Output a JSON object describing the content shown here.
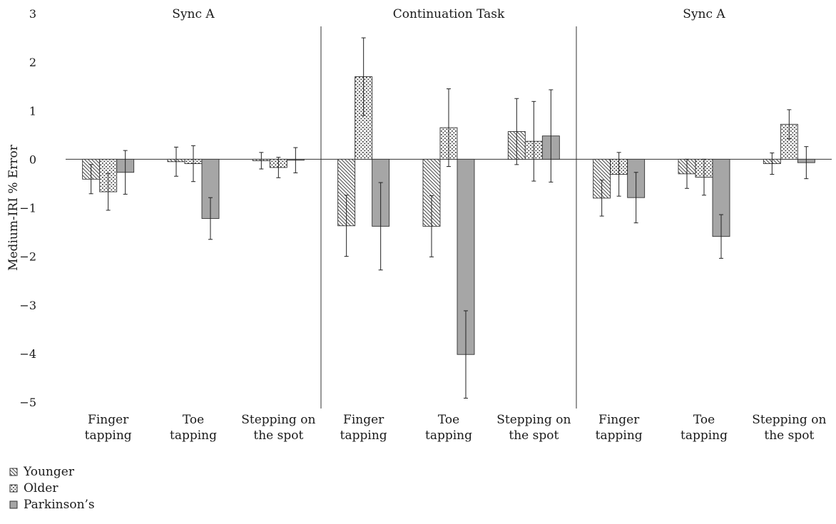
{
  "chart_data": {
    "type": "bar",
    "ylabel": "Medium-IRI % Error",
    "ylim": [
      -5,
      3
    ],
    "yticks": [
      3,
      2,
      1,
      0,
      -1,
      -2,
      -3,
      -4,
      -5
    ],
    "ytick_labels": [
      "3",
      "2",
      "1",
      "0",
      "−1",
      "−2",
      "−3",
      "−4",
      "−5"
    ],
    "legend": {
      "position": "bottom-left",
      "entries": [
        "Younger",
        "Older",
        "Parkinson’s"
      ]
    },
    "series_colors": {
      "Younger": "#ffffff",
      "Older": "#ffffff",
      "Parkinson’s": "#a6a6a6"
    },
    "series_patterns": {
      "Younger": "diagonal-hatch",
      "Older": "dots",
      "Parkinson’s": "solid"
    },
    "panels": [
      {
        "title": "Sync A",
        "categories": [
          {
            "lines": [
              "Finger",
              "tapping"
            ]
          },
          {
            "lines": [
              "Toe",
              "tapping"
            ]
          },
          {
            "lines": [
              "Stepping on",
              "the spot"
            ]
          }
        ],
        "series": [
          {
            "name": "Younger",
            "values": [
              -0.41,
              -0.05,
              -0.03
            ],
            "error": [
              0.3,
              0.3,
              0.17
            ]
          },
          {
            "name": "Older",
            "values": [
              -0.67,
              -0.09,
              -0.17
            ],
            "error": [
              0.38,
              0.37,
              0.21
            ]
          },
          {
            "name": "Parkinson’s",
            "values": [
              -0.27,
              -1.22,
              -0.02
            ],
            "error": [
              0.45,
              0.43,
              0.26
            ]
          }
        ]
      },
      {
        "title": "Continuation Task",
        "categories": [
          {
            "lines": [
              "Finger",
              "tapping"
            ]
          },
          {
            "lines": [
              "Toe",
              "tapping"
            ]
          },
          {
            "lines": [
              "Stepping on",
              "the spot"
            ]
          }
        ],
        "series": [
          {
            "name": "Younger",
            "values": [
              -1.37,
              -1.38,
              0.57
            ],
            "error": [
              0.63,
              0.63,
              0.68
            ]
          },
          {
            "name": "Older",
            "values": [
              1.7,
              0.65,
              0.37
            ],
            "error": [
              0.8,
              0.8,
              0.82
            ]
          },
          {
            "name": "Parkinson’s",
            "values": [
              -1.38,
              -4.02,
              0.48
            ],
            "error": [
              0.9,
              0.9,
              0.95
            ]
          }
        ]
      },
      {
        "title": "Sync A",
        "categories": [
          {
            "lines": [
              "Finger",
              "tapping"
            ]
          },
          {
            "lines": [
              "Toe",
              "tapping"
            ]
          },
          {
            "lines": [
              "Stepping on",
              "the spot"
            ]
          }
        ],
        "series": [
          {
            "name": "Younger",
            "values": [
              -0.8,
              -0.3,
              -0.09
            ],
            "error": [
              0.37,
              0.3,
              0.22
            ]
          },
          {
            "name": "Older",
            "values": [
              -0.31,
              -0.37,
              0.72
            ],
            "error": [
              0.45,
              0.37,
              0.3
            ]
          },
          {
            "name": "Parkinson’s",
            "values": [
              -0.79,
              -1.59,
              -0.07
            ],
            "error": [
              0.52,
              0.45,
              0.33
            ]
          }
        ]
      }
    ]
  }
}
